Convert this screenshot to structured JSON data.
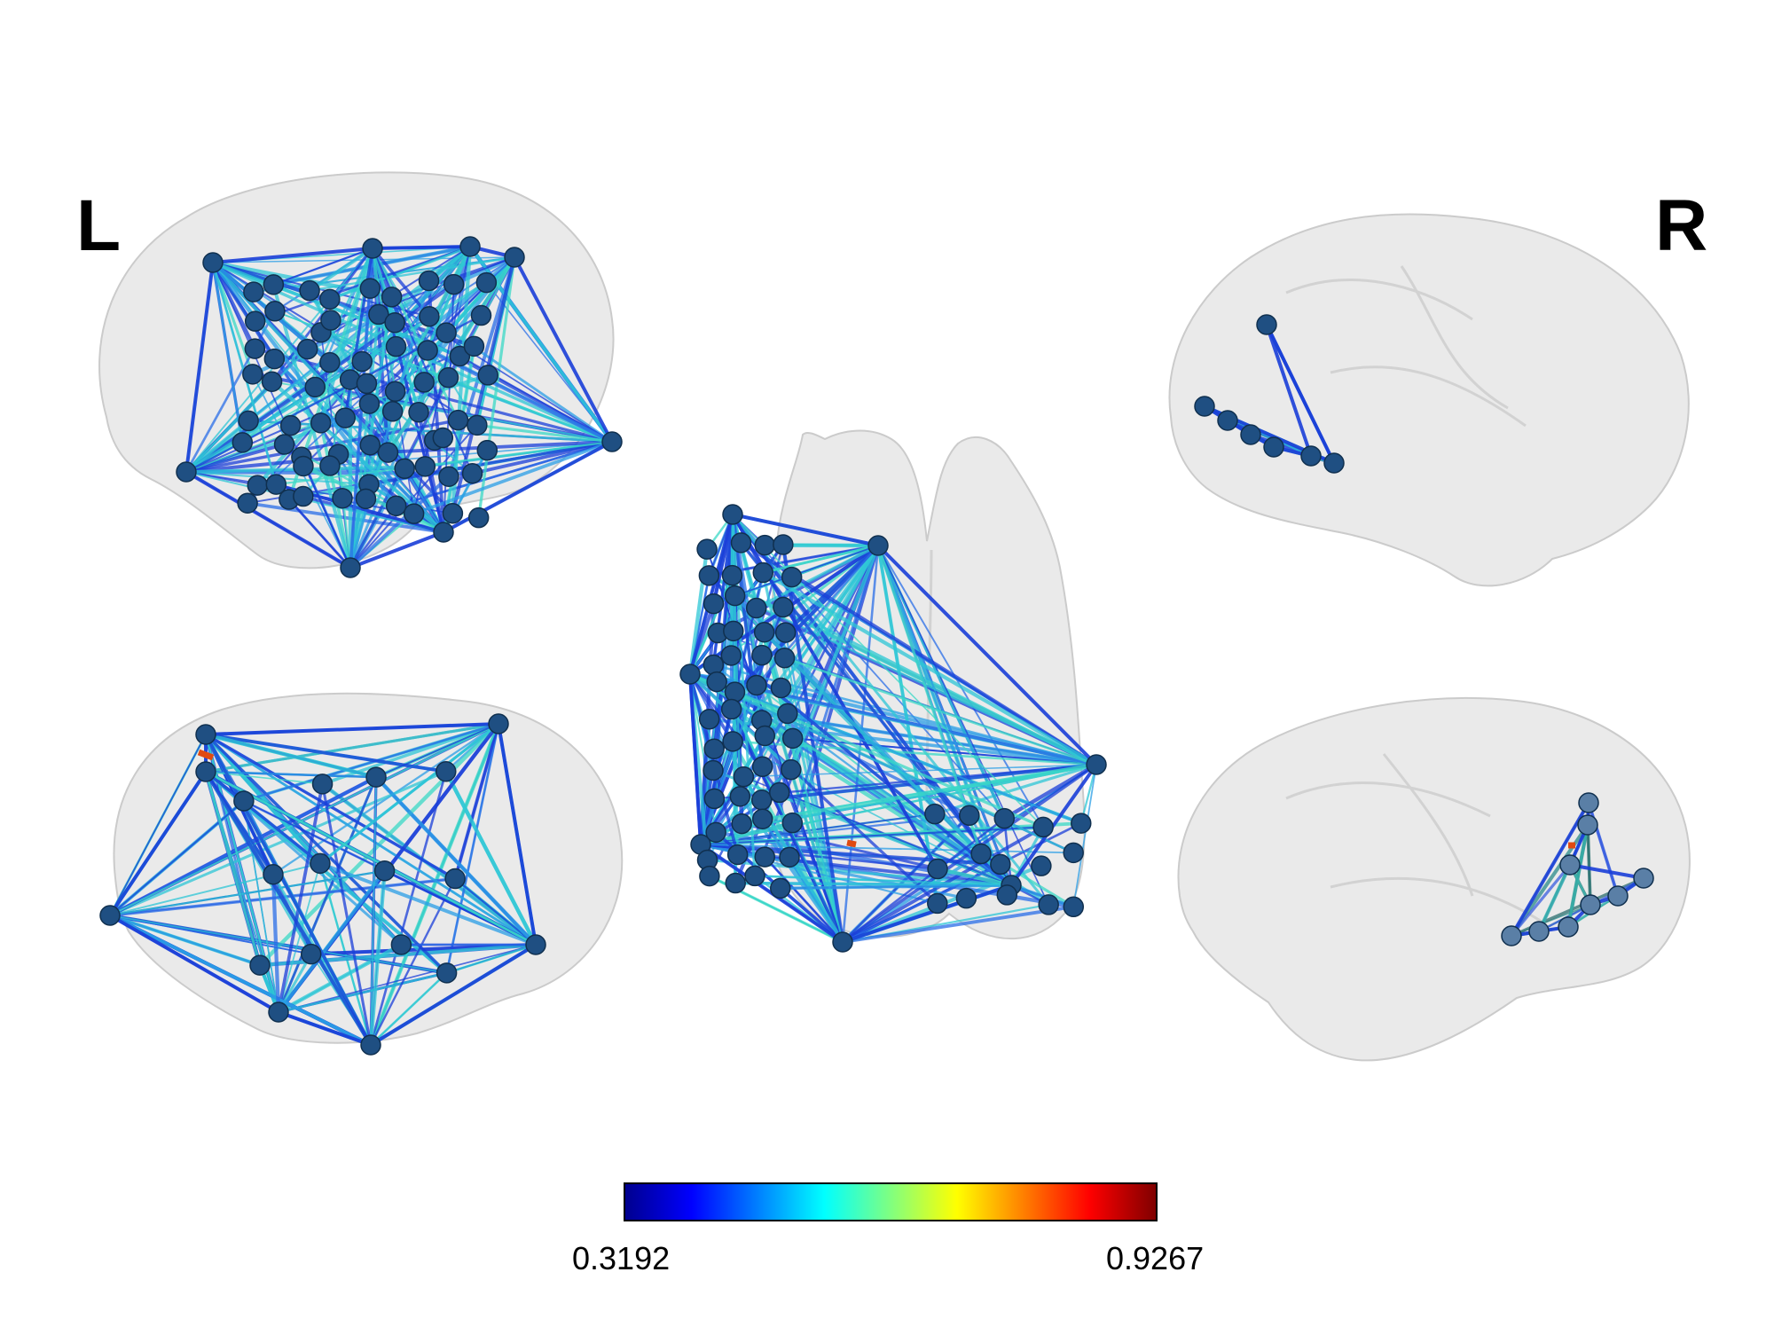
{
  "labels": {
    "left": "L",
    "right": "R"
  },
  "colorbar": {
    "min_label": "0.3192",
    "max_label": "0.9267",
    "colormap": "jet",
    "stops": [
      "#00008f",
      "#0000ff",
      "#0080ff",
      "#00ffff",
      "#80ff80",
      "#ffff00",
      "#ff8000",
      "#ff0000",
      "#800000"
    ]
  },
  "colors": {
    "node": "#1f4f82",
    "node_light": "#5a7fa6",
    "brain_fill": "#e9e9e9",
    "brain_stroke": "#c9c9c9",
    "edge_low": "#1a3fd9",
    "edge_mid": "#2ec7d6",
    "edge_high": "#e04a10"
  },
  "views": [
    {
      "id": "left-lateral"
    },
    {
      "id": "left-medial"
    },
    {
      "id": "axial"
    },
    {
      "id": "right-lateral"
    },
    {
      "id": "right-medial"
    }
  ]
}
